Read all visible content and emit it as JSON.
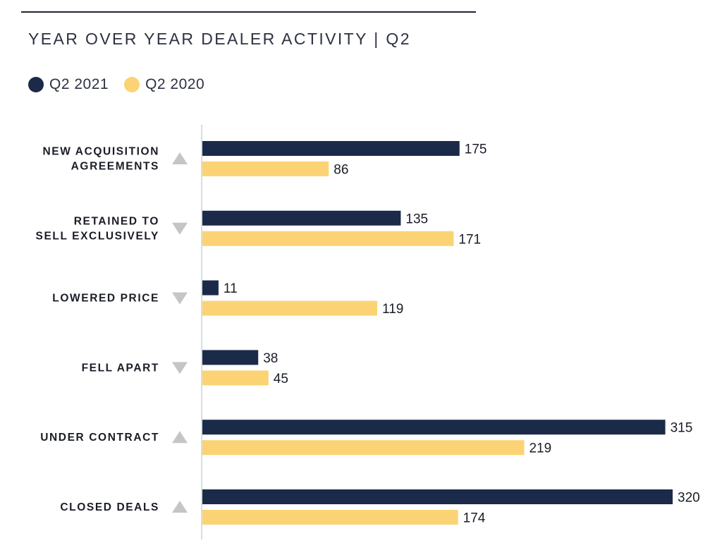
{
  "colors": {
    "q2_2021": "#1b2a48",
    "q2_2020": "#fcd374",
    "trend_icon": "#c5c5c5",
    "axis": "#c9d3dc"
  },
  "chart_data": {
    "type": "bar",
    "orientation": "horizontal",
    "title": "YEAR OVER YEAR DEALER ACTIVITY | Q2",
    "legend_position": "top-left",
    "grid": false,
    "xlim": [
      0,
      320
    ],
    "categories": [
      {
        "lines": [
          "NEW ACQUISITION",
          "AGREEMENTS"
        ],
        "trend": "up"
      },
      {
        "lines": [
          "RETAINED TO",
          "SELL EXCLUSIVELY"
        ],
        "trend": "down"
      },
      {
        "lines": [
          "LOWERED PRICE"
        ],
        "trend": "down"
      },
      {
        "lines": [
          "FELL APART"
        ],
        "trend": "down"
      },
      {
        "lines": [
          "UNDER CONTRACT"
        ],
        "trend": "up"
      },
      {
        "lines": [
          "CLOSED DEALS"
        ],
        "trend": "up"
      }
    ],
    "series": [
      {
        "name": "Q2 2021",
        "color": "#1b2a48",
        "values": [
          175,
          135,
          11,
          38,
          315,
          320
        ]
      },
      {
        "name": "Q2 2020",
        "color": "#fcd374",
        "values": [
          86,
          171,
          119,
          45,
          219,
          174
        ]
      }
    ]
  }
}
